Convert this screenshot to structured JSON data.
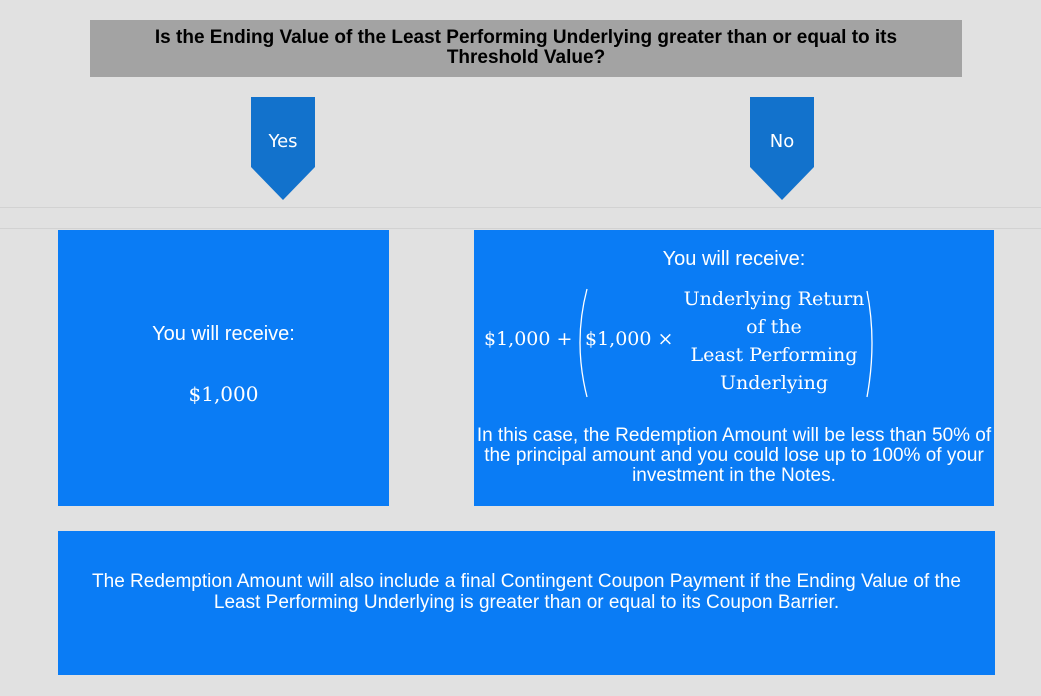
{
  "question": "Is the Ending Value of the Least Performing Underlying greater than or equal to its Threshold Value?",
  "branches": {
    "yes": {
      "label": "Yes",
      "receive": "You will receive:",
      "amount": "$1,000"
    },
    "no": {
      "label": "No",
      "receive": "You will receive:",
      "formula": {
        "principal_plus": "$1,000 +",
        "principal_times": "$1,000 ×",
        "fraction_lines": [
          "Underlying Return",
          "of the",
          "Least Performing",
          "Underlying"
        ]
      },
      "case_note": "In this case, the Redemption Amount will be less than 50% of the principal amount and you could lose up to 100% of your investment in the Notes."
    }
  },
  "footer_note": "The Redemption Amount will also include a final Contingent Coupon Payment if the Ending Value of the Least Performing Underlying is greater than or equal to its Coupon Barrier.",
  "colors": {
    "background": "#e1e1e1",
    "question_box": "#a3a3a3",
    "arrow": "#1272cc",
    "box": "#0a7cf5"
  }
}
